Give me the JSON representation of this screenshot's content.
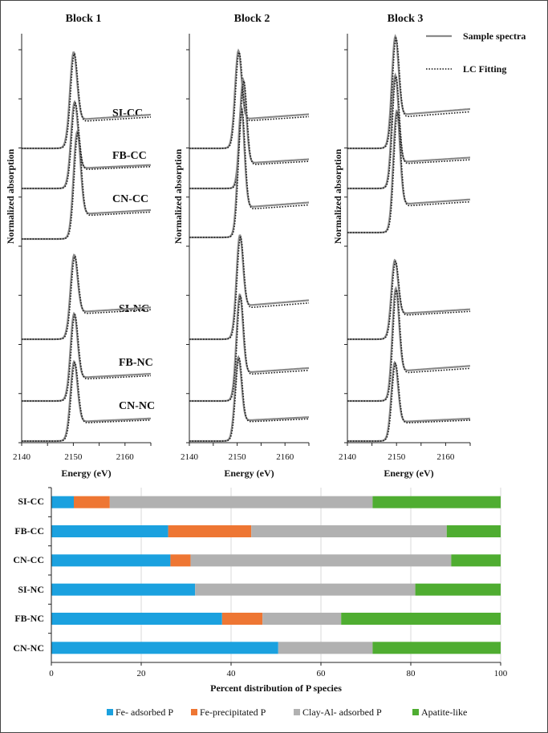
{
  "xanes": {
    "ylabel": "Normalized absorption",
    "xlabel": "Energy (eV)",
    "x_ticks": [
      2140,
      2150,
      2160
    ],
    "xlim": [
      2140,
      2165
    ],
    "legend": {
      "sample": "Sample spectra",
      "fit": "LC Fitting"
    },
    "blocks": [
      {
        "title": "Block 1"
      },
      {
        "title": "Block 2"
      },
      {
        "title": "Block 3"
      }
    ],
    "sample_labels": [
      "SI-CC",
      "FB-CC",
      "CN-CC",
      "SI-NC",
      "FB-NC",
      "CN-NC"
    ]
  },
  "chart_data": {
    "type": "bar",
    "stacked": true,
    "orientation": "horizontal",
    "title": "",
    "xlabel": "Percent distribution of P species",
    "ylabel": "",
    "xlim": [
      0,
      100
    ],
    "x_ticks": [
      0,
      20,
      40,
      60,
      80,
      100
    ],
    "grid": true,
    "legend": "bottom",
    "categories": [
      "SI-CC",
      "FB-CC",
      "CN-CC",
      "SI-NC",
      "FB-NC",
      "CN-NC"
    ],
    "series": [
      {
        "name": "Fe- adsorbed P",
        "color": "#1ba1df",
        "values": [
          5,
          26,
          26.5,
          32,
          38,
          50.5
        ]
      },
      {
        "name": "Fe-precipitated P",
        "color": "#ee7633",
        "values": [
          8,
          18.5,
          4.5,
          0,
          9,
          0
        ]
      },
      {
        "name": "Clay-Al- adsorbed P",
        "color": "#b1b1b1",
        "values": [
          58.5,
          43.5,
          58,
          49,
          17.5,
          21
        ]
      },
      {
        "name": "Apatite-like",
        "color": "#4fad31",
        "values": [
          28.5,
          12,
          11,
          19,
          35.5,
          28.5
        ]
      }
    ]
  }
}
